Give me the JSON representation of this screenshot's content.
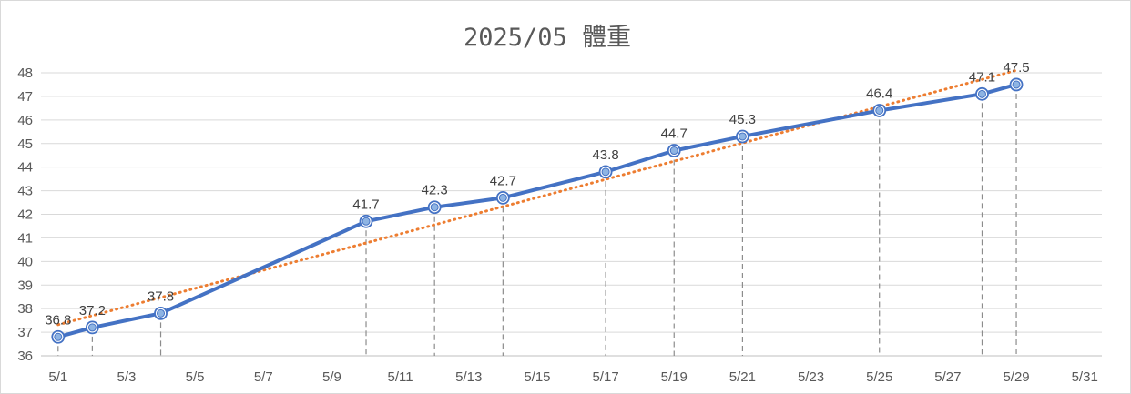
{
  "chart_data": {
    "type": "line",
    "title": "2025/05 體重",
    "xlabel": "",
    "ylabel": "",
    "xlim": [
      "5/1",
      "5/31"
    ],
    "ylim": [
      36,
      48
    ],
    "yticks": [
      36,
      37,
      38,
      39,
      40,
      41,
      42,
      43,
      44,
      45,
      46,
      47,
      48
    ],
    "xtick_labels": [
      "5/1",
      "5/3",
      "5/5",
      "5/7",
      "5/9",
      "5/11",
      "5/13",
      "5/15",
      "5/17",
      "5/19",
      "5/21",
      "5/23",
      "5/25",
      "5/27",
      "5/29",
      "5/31"
    ],
    "grid": "horizontal",
    "drop_lines": true,
    "series": [
      {
        "x": [
          "5/1",
          "5/2",
          "5/4",
          "5/10",
          "5/12",
          "5/14",
          "5/17",
          "5/19",
          "5/21",
          "5/25",
          "5/28",
          "5/29"
        ],
        "y": [
          36.8,
          37.2,
          37.8,
          41.7,
          42.3,
          42.7,
          43.8,
          44.7,
          45.3,
          46.4,
          47.1,
          47.5
        ],
        "color": "#4472c4",
        "marker": "circle",
        "data_labels": true
      }
    ],
    "trendline": {
      "type": "linear",
      "color": "#ed7d31",
      "style": "dotted"
    }
  }
}
